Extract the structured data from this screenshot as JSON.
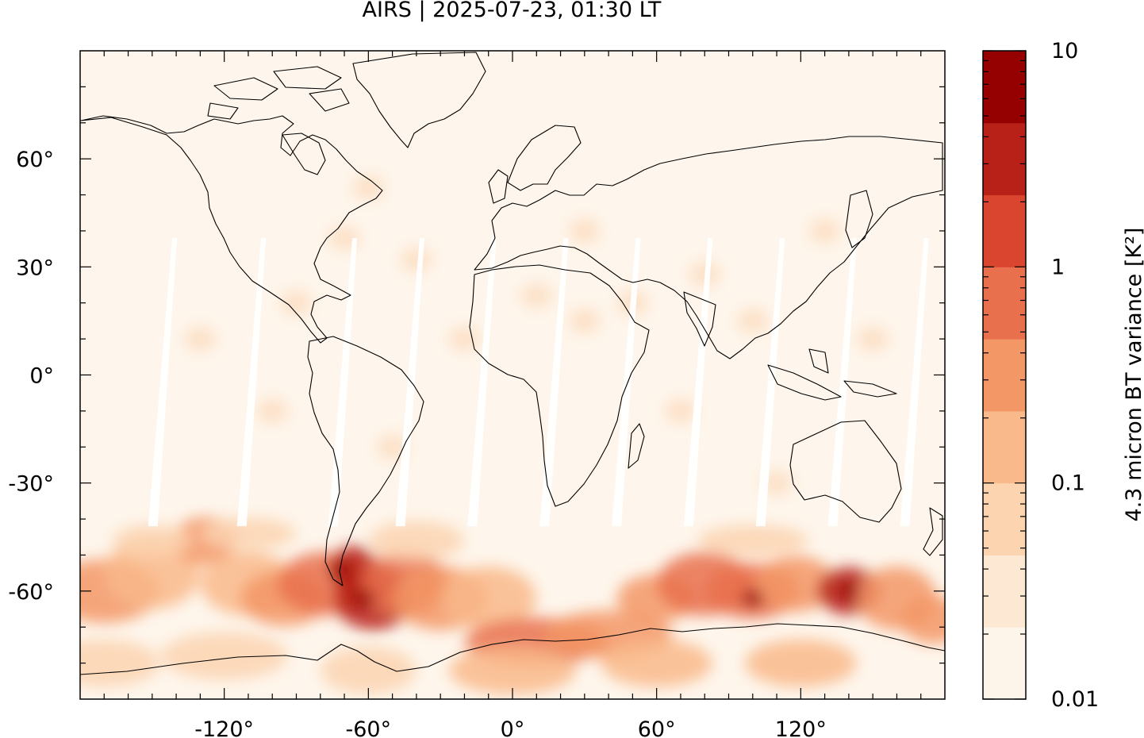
{
  "title": "AIRS | 2025-07-23, 01:30 LT",
  "map": {
    "lon_range": [
      -180,
      180
    ],
    "lat_range": [
      -90,
      90
    ],
    "lon_ticks": [
      {
        "value": -120,
        "label": "-120°"
      },
      {
        "value": -60,
        "label": "-60°"
      },
      {
        "value": 0,
        "label": "0°"
      },
      {
        "value": 60,
        "label": "60°"
      },
      {
        "value": 120,
        "label": "120°"
      }
    ],
    "lat_ticks": [
      {
        "value": 60,
        "label": "60°"
      },
      {
        "value": 30,
        "label": "30°"
      },
      {
        "value": 0,
        "label": "0°"
      },
      {
        "value": -30,
        "label": "-30°"
      },
      {
        "value": -60,
        "label": "-60°"
      }
    ]
  },
  "colorbar": {
    "label": "4.3 micron BT variance [K²]",
    "scale": "log",
    "range": [
      0.01,
      10
    ],
    "tick_labels": [
      {
        "value": 10,
        "label": "10"
      },
      {
        "value": 1,
        "label": "1"
      },
      {
        "value": 0.1,
        "label": "0.1"
      },
      {
        "value": 0.01,
        "label": "0.01"
      }
    ],
    "levels": [
      0.01,
      0.02,
      0.05,
      0.1,
      0.2,
      0.5,
      1,
      2,
      5,
      10
    ],
    "colors": [
      "#fff5eb",
      "#fee6ce",
      "#fdd0a2",
      "#fdae6b",
      "#fc8d59",
      "#f16913",
      "#e6550d",
      "#d94801",
      "#a63603"
    ]
  },
  "palette": [
    "#fef5ea",
    "#fde8d4",
    "#fcd4b0",
    "#f9b98a",
    "#f39766",
    "#e9704c",
    "#d9452f",
    "#b82117",
    "#950000"
  ]
}
